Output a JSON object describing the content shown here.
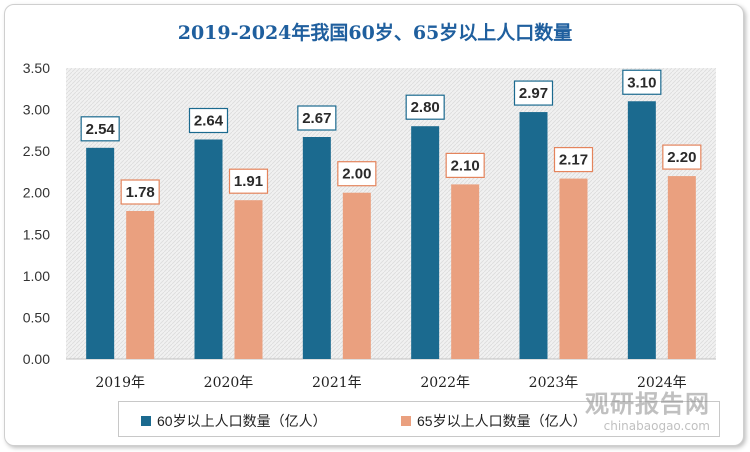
{
  "chart_data": {
    "type": "bar",
    "title": "2019-2024年我国60岁、65岁以上人口数量",
    "categories": [
      "2019年",
      "2020年",
      "2021年",
      "2022年",
      "2023年",
      "2024年"
    ],
    "series": [
      {
        "name": "60岁以上人口数量（亿人）",
        "color": "#1b6a8f",
        "label_border": "#1b6a8f",
        "values": [
          2.54,
          2.64,
          2.67,
          2.8,
          2.97,
          3.1
        ],
        "labels": [
          "2.54",
          "2.64",
          "2.67",
          "2.80",
          "2.97",
          "3.10"
        ]
      },
      {
        "name": "65岁以上人口数量（亿人）",
        "color": "#eaa07f",
        "label_border": "#e4845c",
        "values": [
          1.78,
          1.91,
          2.0,
          2.1,
          2.17,
          2.2
        ],
        "labels": [
          "1.78",
          "1.91",
          "2.00",
          "2.10",
          "2.17",
          "2.20"
        ]
      }
    ],
    "ylim": [
      0,
      3.5
    ],
    "yticks": [
      "0.00",
      "0.50",
      "1.00",
      "1.50",
      "2.00",
      "2.50",
      "3.00",
      "3.50"
    ],
    "xlabel": "",
    "ylabel": "",
    "grid": false,
    "legend": "bottom",
    "plot_background": "hatched-gray"
  },
  "watermark": {
    "text": "观研报告网",
    "sub": "chinabaogao.com"
  }
}
